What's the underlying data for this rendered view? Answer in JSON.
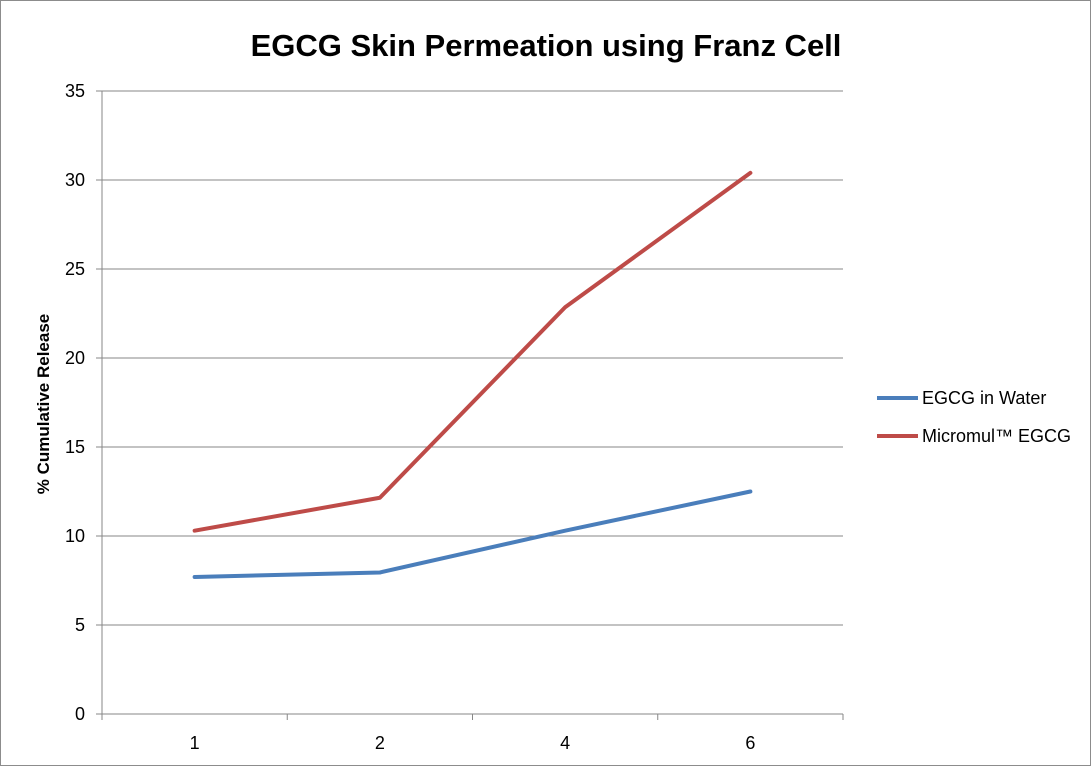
{
  "chart_data": {
    "type": "line",
    "title": "EGCG Skin Permeation using Franz Cell",
    "xlabel": "",
    "ylabel": "% Cumulative Release",
    "categories": [
      "1",
      "2",
      "4",
      "6"
    ],
    "ylim": [
      0,
      35
    ],
    "yticks": [
      0,
      5,
      10,
      15,
      20,
      25,
      30,
      35
    ],
    "grid": true,
    "legend_position": "right",
    "series": [
      {
        "name": "EGCG in Water",
        "color": "#4a7ebb",
        "values": [
          7.7,
          7.95,
          10.3,
          12.5
        ]
      },
      {
        "name": "Micromul™ EGCG",
        "color": "#be4b48",
        "values": [
          10.3,
          12.15,
          22.85,
          30.4
        ]
      }
    ]
  }
}
